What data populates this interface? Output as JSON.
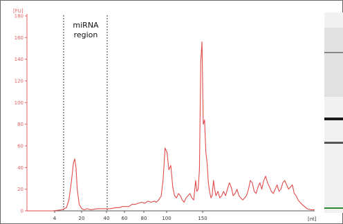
{
  "chart_data": {
    "type": "line",
    "ylabel": "[FU]",
    "xlabel": "[nt]",
    "ylim": [
      0,
      180
    ],
    "y_ticks": [
      0,
      20,
      40,
      60,
      80,
      100,
      120,
      140,
      160,
      180
    ],
    "x_ticks": [
      "4",
      "20",
      "40",
      "60",
      "80",
      "100",
      "150"
    ],
    "annotation": [
      "miRNA",
      "region"
    ],
    "series": [
      {
        "color": "#e34a4a",
        "points": [
          [
            0,
            0
          ],
          [
            20,
            0
          ],
          [
            40,
            0
          ],
          [
            55,
            1
          ],
          [
            62,
            3
          ],
          [
            66,
            10
          ],
          [
            70,
            28
          ],
          [
            73,
            44
          ],
          [
            75,
            48
          ],
          [
            77,
            40
          ],
          [
            79,
            20
          ],
          [
            82,
            6
          ],
          [
            86,
            2
          ],
          [
            90,
            1
          ],
          [
            95,
            2
          ],
          [
            100,
            1
          ],
          [
            110,
            2
          ],
          [
            120,
            2
          ],
          [
            130,
            2
          ],
          [
            140,
            3
          ],
          [
            145,
            3
          ],
          [
            150,
            4
          ],
          [
            155,
            4
          ],
          [
            160,
            4
          ],
          [
            165,
            6
          ],
          [
            170,
            6
          ],
          [
            175,
            7
          ],
          [
            180,
            8
          ],
          [
            185,
            7
          ],
          [
            190,
            9
          ],
          [
            195,
            8
          ],
          [
            200,
            9
          ],
          [
            203,
            8
          ],
          [
            207,
            10
          ],
          [
            211,
            14
          ],
          [
            214,
            30
          ],
          [
            217,
            58
          ],
          [
            220,
            54
          ],
          [
            223,
            38
          ],
          [
            226,
            42
          ],
          [
            229,
            22
          ],
          [
            232,
            14
          ],
          [
            235,
            12
          ],
          [
            238,
            16
          ],
          [
            241,
            14
          ],
          [
            244,
            10
          ],
          [
            247,
            8
          ],
          [
            250,
            12
          ],
          [
            253,
            14
          ],
          [
            256,
            16
          ],
          [
            259,
            12
          ],
          [
            262,
            10
          ],
          [
            265,
            28
          ],
          [
            267,
            18
          ],
          [
            269,
            20
          ],
          [
            271,
            38
          ],
          [
            273,
            138
          ],
          [
            275,
            156
          ],
          [
            277,
            80
          ],
          [
            279,
            84
          ],
          [
            281,
            55
          ],
          [
            283,
            44
          ],
          [
            285,
            26
          ],
          [
            287,
            18
          ],
          [
            289,
            12
          ],
          [
            291,
            14
          ],
          [
            293,
            28
          ],
          [
            295,
            20
          ],
          [
            297,
            14
          ],
          [
            300,
            18
          ],
          [
            303,
            12
          ],
          [
            306,
            14
          ],
          [
            309,
            18
          ],
          [
            312,
            14
          ],
          [
            315,
            20
          ],
          [
            318,
            26
          ],
          [
            321,
            22
          ],
          [
            324,
            14
          ],
          [
            327,
            16
          ],
          [
            330,
            20
          ],
          [
            333,
            14
          ],
          [
            336,
            12
          ],
          [
            339,
            10
          ],
          [
            342,
            12
          ],
          [
            345,
            14
          ],
          [
            348,
            20
          ],
          [
            351,
            28
          ],
          [
            354,
            26
          ],
          [
            357,
            18
          ],
          [
            360,
            16
          ],
          [
            363,
            22
          ],
          [
            366,
            26
          ],
          [
            369,
            20
          ],
          [
            372,
            28
          ],
          [
            375,
            32
          ],
          [
            378,
            26
          ],
          [
            381,
            22
          ],
          [
            384,
            18
          ],
          [
            387,
            16
          ],
          [
            390,
            20
          ],
          [
            393,
            24
          ],
          [
            396,
            18
          ],
          [
            399,
            20
          ],
          [
            402,
            26
          ],
          [
            405,
            28
          ],
          [
            408,
            24
          ],
          [
            411,
            20
          ],
          [
            414,
            22
          ],
          [
            417,
            24
          ],
          [
            420,
            16
          ],
          [
            423,
            14
          ],
          [
            426,
            10
          ],
          [
            429,
            8
          ],
          [
            432,
            6
          ],
          [
            436,
            4
          ],
          [
            440,
            2
          ],
          [
            446,
            1
          ],
          [
            452,
            1
          ]
        ]
      }
    ]
  },
  "gel": {
    "bands": [
      {
        "shade": "#1a1a1a"
      },
      {
        "shade": "#555555"
      },
      {
        "shade": "#888888"
      },
      {
        "shade": "#2f8a2f"
      }
    ]
  }
}
